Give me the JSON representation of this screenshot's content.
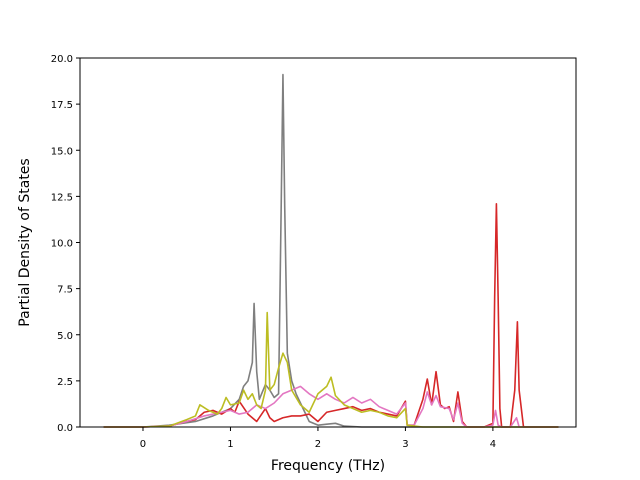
{
  "chart_data": {
    "type": "line",
    "title": "",
    "xlabel": "Frequency (THz)",
    "ylabel": "Partial Density of States",
    "xlim": [
      -0.72,
      4.95
    ],
    "ylim": [
      0,
      20
    ],
    "xticks": [
      0,
      1,
      2,
      3,
      4
    ],
    "xtick_labels": [
      "0",
      "1",
      "2",
      "3",
      "4"
    ],
    "yticks": [
      0,
      2.5,
      5,
      7.5,
      10,
      12.5,
      15,
      17.5,
      20
    ],
    "ytick_labels": [
      "0.0",
      "2.5",
      "5.0",
      "7.5",
      "10.0",
      "12.5",
      "15.0",
      "17.5",
      "20.0"
    ],
    "grid": false,
    "legend": "none",
    "series": [
      {
        "color": "#7f7f7f",
        "x": [
          -0.45,
          0.0,
          0.3,
          0.6,
          0.8,
          1.0,
          1.1,
          1.15,
          1.2,
          1.25,
          1.27,
          1.3,
          1.33,
          1.4,
          1.45,
          1.5,
          1.55,
          1.58,
          1.6,
          1.62,
          1.65,
          1.7,
          1.75,
          1.8,
          1.85,
          1.9,
          2.0,
          2.1,
          2.2,
          2.3,
          2.5,
          3.0,
          3.5,
          4.0,
          4.5,
          4.75
        ],
        "y": [
          0,
          0,
          0.1,
          0.3,
          0.6,
          1.0,
          1.5,
          2.2,
          2.5,
          3.5,
          6.7,
          3.0,
          1.5,
          2.3,
          2.0,
          1.6,
          1.8,
          12.0,
          19.1,
          12.0,
          4.0,
          2.5,
          1.8,
          1.3,
          0.8,
          0.3,
          0.1,
          0.15,
          0.2,
          0.05,
          0,
          0,
          0,
          0,
          0,
          0
        ]
      },
      {
        "color": "#d62728",
        "x": [
          -0.45,
          0.0,
          0.3,
          0.5,
          0.6,
          0.7,
          0.8,
          0.9,
          1.0,
          1.05,
          1.1,
          1.2,
          1.3,
          1.4,
          1.45,
          1.5,
          1.6,
          1.7,
          1.8,
          1.9,
          2.0,
          2.1,
          2.2,
          2.3,
          2.4,
          2.5,
          2.6,
          2.7,
          2.8,
          2.9,
          3.0,
          3.02,
          3.1,
          3.2,
          3.25,
          3.3,
          3.35,
          3.4,
          3.45,
          3.5,
          3.55,
          3.6,
          3.65,
          3.7,
          3.8,
          3.9,
          4.0,
          4.02,
          4.04,
          4.06,
          4.08,
          4.1,
          4.2,
          4.25,
          4.28,
          4.3,
          4.35,
          4.5,
          4.75
        ],
        "y": [
          0,
          0,
          0.05,
          0.3,
          0.4,
          0.8,
          0.9,
          0.7,
          1.0,
          0.8,
          1.4,
          0.7,
          0.3,
          1.0,
          0.5,
          0.3,
          0.5,
          0.6,
          0.6,
          0.7,
          0.3,
          0.8,
          0.9,
          1.0,
          1.1,
          0.9,
          1.0,
          0.8,
          0.7,
          0.6,
          1.4,
          0.1,
          0.1,
          1.5,
          2.6,
          1.2,
          3.0,
          1.2,
          1.0,
          1.1,
          0.3,
          1.9,
          0.3,
          0,
          0,
          0,
          0.2,
          7.0,
          12.1,
          7.0,
          1.0,
          0,
          0,
          2.0,
          5.7,
          2.0,
          0,
          0,
          0
        ]
      },
      {
        "color": "#e377c2",
        "x": [
          -0.45,
          0.0,
          0.3,
          0.5,
          0.7,
          0.9,
          1.0,
          1.1,
          1.2,
          1.3,
          1.4,
          1.5,
          1.6,
          1.7,
          1.8,
          1.9,
          2.0,
          2.1,
          2.2,
          2.3,
          2.4,
          2.5,
          2.6,
          2.7,
          2.8,
          2.9,
          3.0,
          3.02,
          3.1,
          3.2,
          3.25,
          3.3,
          3.35,
          3.4,
          3.5,
          3.55,
          3.6,
          3.65,
          3.7,
          3.8,
          3.9,
          4.0,
          4.03,
          4.06,
          4.1,
          4.2,
          4.27,
          4.3,
          4.5,
          4.75
        ],
        "y": [
          0,
          0,
          0.05,
          0.3,
          0.6,
          0.8,
          0.9,
          0.7,
          0.8,
          1.2,
          1.0,
          1.3,
          1.8,
          2.0,
          2.2,
          1.8,
          1.5,
          1.8,
          1.5,
          1.3,
          1.6,
          1.3,
          1.5,
          1.1,
          0.9,
          0.7,
          1.3,
          0.1,
          0.1,
          1.0,
          1.9,
          1.2,
          1.7,
          1.1,
          1.0,
          0.4,
          1.3,
          0.2,
          0,
          0,
          0,
          0.1,
          0.9,
          0.1,
          0,
          0,
          0.5,
          0,
          0,
          0
        ]
      },
      {
        "color": "#bcbd22",
        "x": [
          -0.45,
          0.0,
          0.3,
          0.5,
          0.6,
          0.65,
          0.75,
          0.85,
          0.9,
          0.95,
          1.0,
          1.1,
          1.15,
          1.2,
          1.25,
          1.3,
          1.35,
          1.4,
          1.42,
          1.45,
          1.5,
          1.55,
          1.6,
          1.65,
          1.7,
          1.8,
          1.9,
          2.0,
          2.1,
          2.15,
          2.2,
          2.3,
          2.4,
          2.5,
          2.6,
          2.7,
          2.8,
          2.9,
          3.0,
          3.02,
          3.2,
          3.4,
          3.5,
          3.7,
          4.0,
          4.5,
          4.75
        ],
        "y": [
          0,
          0,
          0.05,
          0.4,
          0.6,
          1.2,
          0.9,
          0.7,
          1.0,
          1.6,
          1.2,
          1.3,
          2.0,
          1.5,
          1.8,
          1.2,
          1.0,
          2.0,
          6.2,
          2.0,
          2.3,
          3.2,
          4.0,
          3.5,
          2.0,
          1.2,
          0.8,
          1.8,
          2.2,
          2.7,
          1.7,
          1.2,
          1.0,
          0.8,
          0.9,
          0.8,
          0.6,
          0.5,
          1.0,
          0.1,
          0,
          0,
          0,
          0,
          0,
          0,
          0
        ]
      }
    ]
  }
}
